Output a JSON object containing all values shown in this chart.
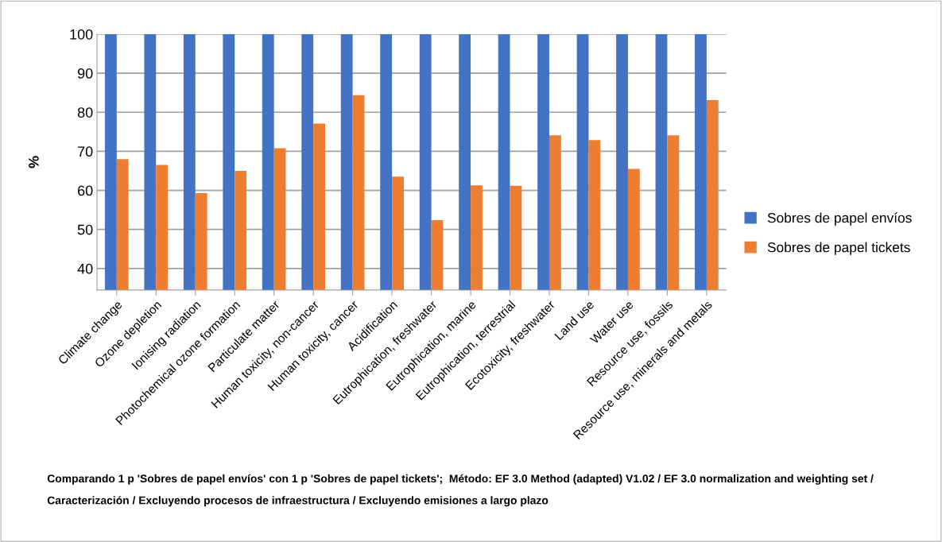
{
  "chart_data": {
    "type": "bar",
    "ylabel": "%",
    "categories": [
      "Climate change",
      "Ozone depletion",
      "Ionising radiation",
      "Photochemical ozone formation",
      "Particulate matter",
      "Human toxicity, non-cancer",
      "Human toxicity, cancer",
      "Acidification",
      "Eutrophication, freshwater",
      "Eutrophication, marine",
      "Eutrophication, terrestrial",
      "Ecotoxicity, freshwater",
      "Land use",
      "Water use",
      "Resource use, fossils",
      "Resource use, minerals and metals"
    ],
    "series": [
      {
        "name": "Sobres de papel envíos",
        "color": "#4472c4",
        "values": [
          100,
          100,
          100,
          100,
          100,
          100,
          100,
          100,
          100,
          100,
          100,
          100,
          100,
          100,
          100,
          100
        ]
      },
      {
        "name": "Sobres de papel tickets",
        "color": "#ed7d31",
        "values": [
          68.0,
          66.5,
          59.3,
          65.0,
          70.8,
          77.1,
          84.4,
          63.5,
          52.4,
          61.3,
          61.2,
          74.1,
          72.9,
          65.5,
          74.1,
          83.1
        ]
      }
    ],
    "ylim": [
      34.5,
      100
    ],
    "yticks": [
      40,
      50,
      60,
      70,
      80,
      90,
      100
    ],
    "grid": "y",
    "legend": "right",
    "annotations": [
      "Comparando 1 p 'Sobres de papel envíos' con 1 p 'Sobres de papel tickets';  Método: EF 3.0 Method (adapted) V1.02 / EF 3.0 normalization and weighting set / Caracterización / Excluyendo procesos de infraestructura / Excluyendo emisiones a largo plazo"
    ]
  }
}
